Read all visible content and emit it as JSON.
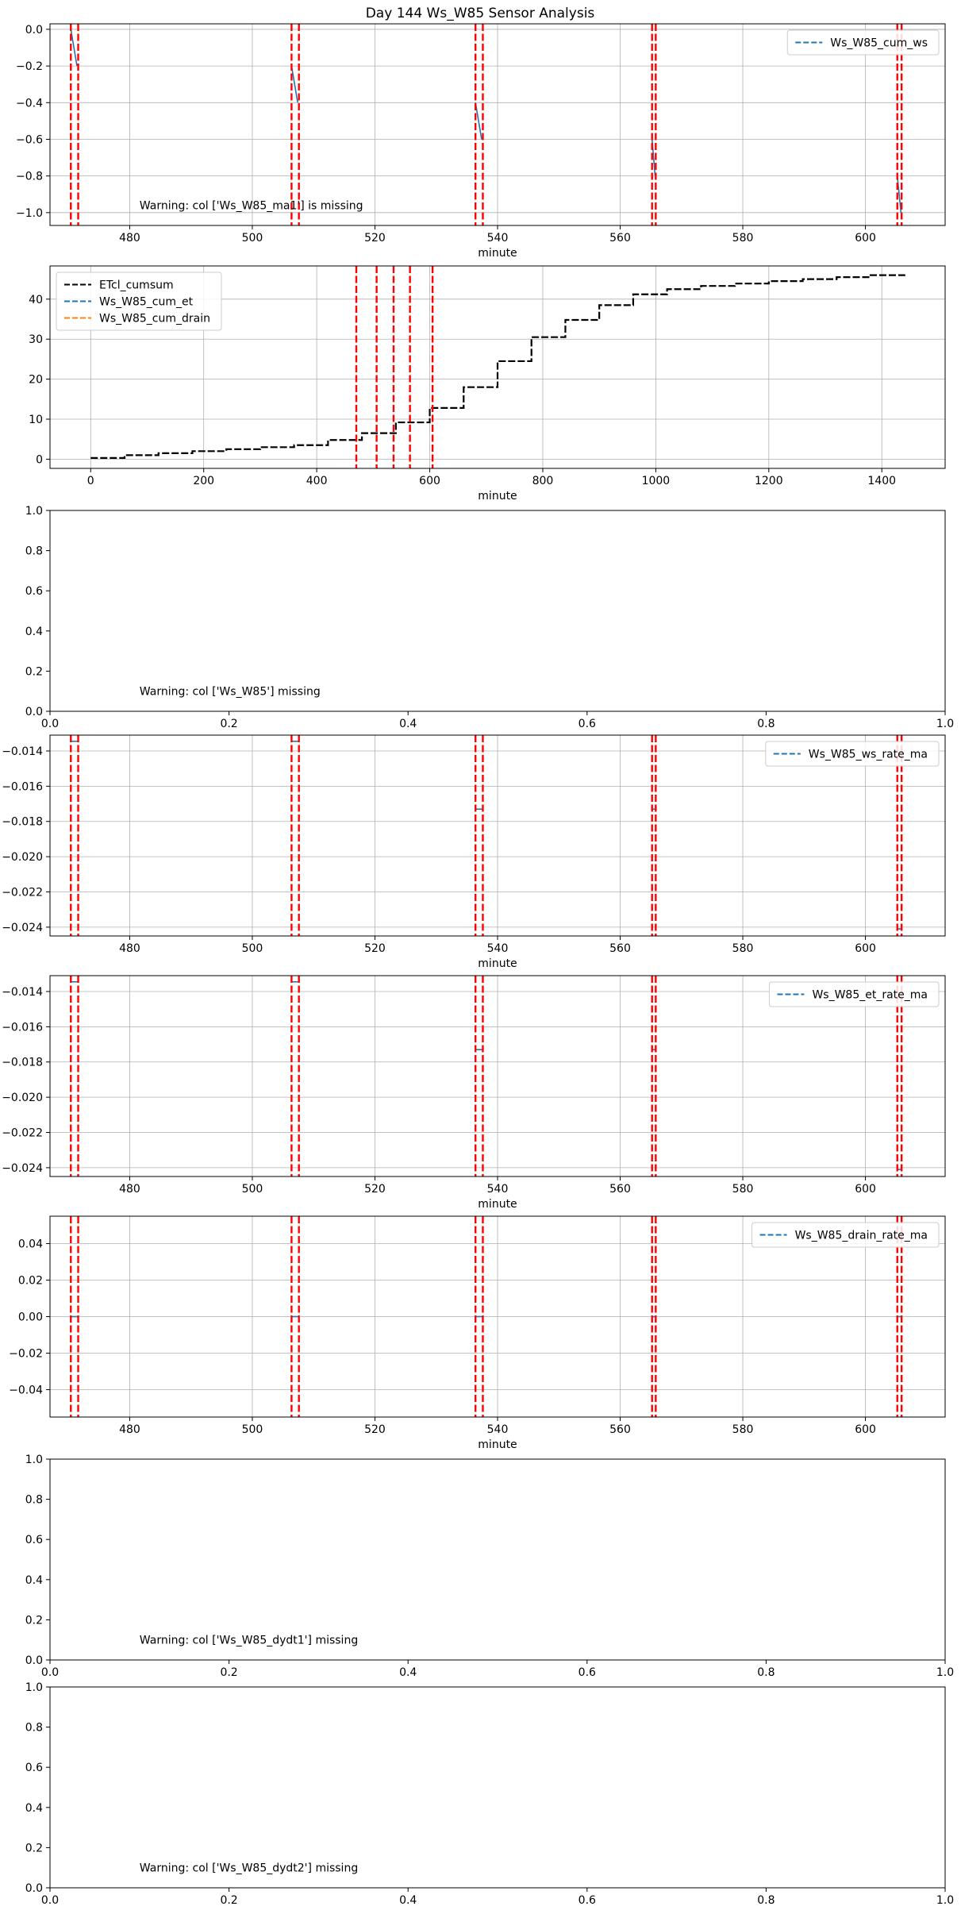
{
  "figure": {
    "title": "Day 144 Ws_W85 Sensor Analysis"
  },
  "chart_data": [
    {
      "type": "line",
      "xlabel": "minute",
      "ylabel": "",
      "xlim": [
        467,
        613
      ],
      "ylim": [
        -1.07,
        0.03
      ],
      "xticks": [
        480,
        500,
        520,
        540,
        560,
        580,
        600
      ],
      "yticks": [
        -1.0,
        -0.8,
        -0.6,
        -0.4,
        -0.2,
        0.0
      ],
      "y_decimals": 1,
      "grid": true,
      "legend_position": "top-right",
      "vlines": [
        470.4,
        471.6,
        506.4,
        507.6,
        536.4,
        537.6,
        565.2,
        565.8,
        605.2,
        605.9
      ],
      "vline_color": "#ff0000",
      "series": [
        {
          "name": "Ws_W85_cum_ws",
          "color": "#1f77b4",
          "dashed": true,
          "segments": [
            [
              [
                470.4,
                0.0
              ],
              [
                471.4,
                -0.2
              ]
            ],
            [
              [
                506.4,
                -0.2
              ],
              [
                507.4,
                -0.4
              ]
            ],
            [
              [
                536.4,
                -0.4
              ],
              [
                537.4,
                -0.6
              ]
            ],
            [
              [
                565.2,
                -0.6
              ],
              [
                565.7,
                -0.8
              ]
            ],
            [
              [
                605.2,
                -0.8
              ],
              [
                605.8,
                -1.0
              ]
            ]
          ]
        }
      ],
      "annotation": "Warning: col ['Ws_W85_ma1'] is missing"
    },
    {
      "type": "line",
      "xlabel": "minute",
      "ylabel": "",
      "xlim": [
        -72,
        1512
      ],
      "ylim": [
        -2.3,
        48.3
      ],
      "xticks": [
        0,
        200,
        400,
        600,
        800,
        1000,
        1200,
        1400
      ],
      "yticks": [
        0,
        10,
        20,
        30,
        40
      ],
      "y_decimals": 0,
      "grid": true,
      "legend_position": "top-left",
      "vlines": [
        470,
        506,
        536,
        565,
        605
      ],
      "vline_color": "#ff0000",
      "step_series": {
        "name": "ETcl_cumsum",
        "color": "#000000",
        "dashed": true,
        "x": [
          0,
          60,
          120,
          180,
          240,
          300,
          360,
          420,
          480,
          540,
          600,
          660,
          720,
          780,
          840,
          900,
          960,
          1020,
          1080,
          1140,
          1200,
          1260,
          1320,
          1380,
          1440
        ],
        "y": [
          0.3,
          1.0,
          1.5,
          2.0,
          2.5,
          3.0,
          3.5,
          4.8,
          6.5,
          9.2,
          12.8,
          18.0,
          24.5,
          30.5,
          34.8,
          38.5,
          41.2,
          42.5,
          43.3,
          43.9,
          44.5,
          45.0,
          45.5,
          46.0,
          46.2
        ]
      },
      "series": [
        {
          "name": "ETcl_cumsum",
          "color": "#000000",
          "dashed": true
        },
        {
          "name": "Ws_W85_cum_et",
          "color": "#1f77b4",
          "dashed": true
        },
        {
          "name": "Ws_W85_cum_drain",
          "color": "#ff7f0e",
          "dashed": true
        }
      ]
    },
    {
      "type": "line",
      "xlabel": "",
      "ylabel": "",
      "xlim": [
        0,
        1
      ],
      "ylim": [
        0,
        1
      ],
      "xticks": [
        0.0,
        0.2,
        0.4,
        0.6,
        0.8,
        1.0
      ],
      "yticks": [
        0.0,
        0.2,
        0.4,
        0.6,
        0.8,
        1.0
      ],
      "x_decimals": 1,
      "y_decimals": 1,
      "grid": false,
      "vlines": [],
      "series": [],
      "annotation": "Warning: col ['Ws_W85'] missing"
    },
    {
      "type": "line",
      "xlabel": "minute",
      "ylabel": "",
      "xlim": [
        467,
        613
      ],
      "ylim": [
        -0.0245,
        -0.0131
      ],
      "xticks": [
        480,
        500,
        520,
        540,
        560,
        580,
        600
      ],
      "yticks": [
        -0.024,
        -0.022,
        -0.02,
        -0.018,
        -0.016,
        -0.014
      ],
      "y_decimals": 3,
      "grid": true,
      "legend_position": "top-right",
      "vlines": [
        470.4,
        471.6,
        506.4,
        507.6,
        536.4,
        537.6,
        565.2,
        565.8,
        605.2,
        605.9
      ],
      "vline_color": "#ff0000",
      "series": [
        {
          "name": "Ws_W85_ws_rate_ma",
          "color": "#1f77b4",
          "dashed": true,
          "segments": [
            [
              [
                470.4,
                -0.01345
              ],
              [
                471.6,
                -0.01345
              ]
            ],
            [
              [
                506.4,
                -0.01345
              ],
              [
                507.6,
                -0.01345
              ]
            ],
            [
              [
                536.4,
                -0.0173
              ],
              [
                537.6,
                -0.0173
              ]
            ],
            [
              [
                565.2,
                -0.0173
              ],
              [
                565.8,
                -0.0173
              ]
            ],
            [
              [
                605.2,
                -0.0241
              ],
              [
                605.9,
                -0.0241
              ]
            ]
          ]
        }
      ]
    },
    {
      "type": "line",
      "xlabel": "minute",
      "ylabel": "",
      "xlim": [
        467,
        613
      ],
      "ylim": [
        -0.0245,
        -0.0131
      ],
      "xticks": [
        480,
        500,
        520,
        540,
        560,
        580,
        600
      ],
      "yticks": [
        -0.024,
        -0.022,
        -0.02,
        -0.018,
        -0.016,
        -0.014
      ],
      "y_decimals": 3,
      "grid": true,
      "legend_position": "top-right",
      "vlines": [
        470.4,
        471.6,
        506.4,
        507.6,
        536.4,
        537.6,
        565.2,
        565.8,
        605.2,
        605.9
      ],
      "vline_color": "#ff0000",
      "series": [
        {
          "name": "Ws_W85_et_rate_ma",
          "color": "#1f77b4",
          "dashed": true,
          "segments": [
            [
              [
                470.4,
                -0.01345
              ],
              [
                471.6,
                -0.01345
              ]
            ],
            [
              [
                506.4,
                -0.01345
              ],
              [
                507.6,
                -0.01345
              ]
            ],
            [
              [
                536.4,
                -0.0173
              ],
              [
                537.6,
                -0.0173
              ]
            ],
            [
              [
                565.2,
                -0.0173
              ],
              [
                565.8,
                -0.0173
              ]
            ],
            [
              [
                605.2,
                -0.0241
              ],
              [
                605.9,
                -0.0241
              ]
            ]
          ]
        }
      ]
    },
    {
      "type": "line",
      "xlabel": "minute",
      "ylabel": "",
      "xlim": [
        467,
        613
      ],
      "ylim": [
        -0.055,
        0.055
      ],
      "xticks": [
        480,
        500,
        520,
        540,
        560,
        580,
        600
      ],
      "yticks": [
        -0.04,
        -0.02,
        0.0,
        0.02,
        0.04
      ],
      "y_decimals": 2,
      "grid": true,
      "legend_position": "top-right",
      "vlines": [
        470.4,
        471.6,
        506.4,
        507.6,
        536.4,
        537.6,
        565.2,
        565.8,
        605.2,
        605.9
      ],
      "vline_color": "#ff0000",
      "series": [
        {
          "name": "Ws_W85_drain_rate_ma",
          "color": "#1f77b4",
          "dashed": true,
          "segments": [
            [
              [
                470.4,
                0.0
              ],
              [
                471.6,
                0.0
              ]
            ],
            [
              [
                506.4,
                0.0
              ],
              [
                507.6,
                0.0
              ]
            ],
            [
              [
                536.4,
                0.0
              ],
              [
                537.6,
                0.0
              ]
            ],
            [
              [
                565.2,
                0.0
              ],
              [
                565.8,
                0.0
              ]
            ],
            [
              [
                605.2,
                0.0
              ],
              [
                605.9,
                0.0
              ]
            ]
          ]
        }
      ]
    },
    {
      "type": "line",
      "xlabel": "",
      "ylabel": "",
      "xlim": [
        0,
        1
      ],
      "ylim": [
        0,
        1
      ],
      "xticks": [
        0.0,
        0.2,
        0.4,
        0.6,
        0.8,
        1.0
      ],
      "yticks": [
        0.0,
        0.2,
        0.4,
        0.6,
        0.8,
        1.0
      ],
      "x_decimals": 1,
      "y_decimals": 1,
      "grid": false,
      "vlines": [],
      "series": [],
      "annotation": "Warning: col ['Ws_W85_dydt1'] missing"
    },
    {
      "type": "line",
      "xlabel": "",
      "ylabel": "",
      "xlim": [
        0,
        1
      ],
      "ylim": [
        0,
        1
      ],
      "xticks": [
        0.0,
        0.2,
        0.4,
        0.6,
        0.8,
        1.0
      ],
      "yticks": [
        0.0,
        0.2,
        0.4,
        0.6,
        0.8,
        1.0
      ],
      "x_decimals": 1,
      "y_decimals": 1,
      "grid": false,
      "vlines": [],
      "series": [],
      "annotation": "Warning: col ['Ws_W85_dydt2'] missing"
    }
  ]
}
